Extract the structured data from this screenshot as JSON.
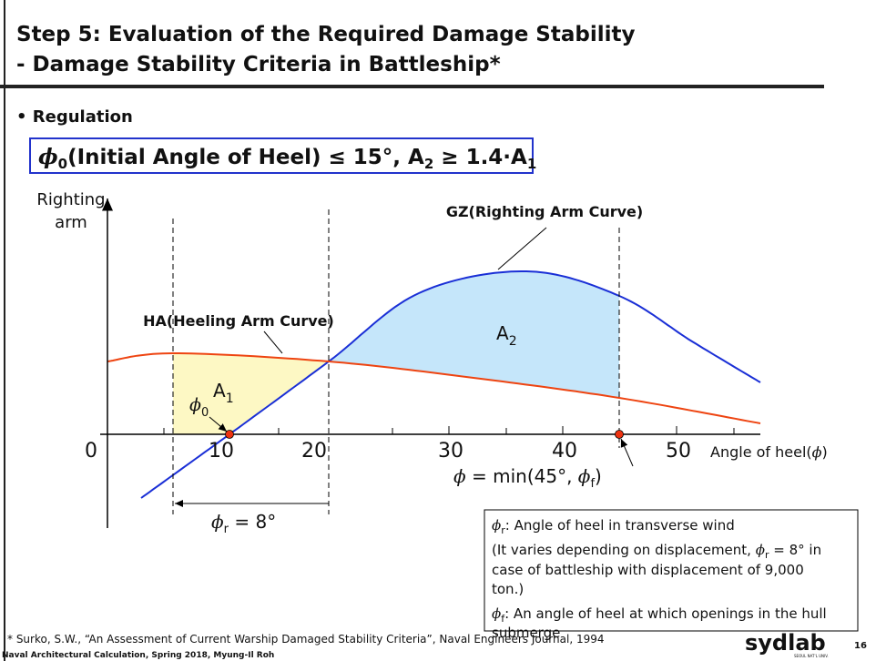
{
  "header": {
    "title_line1": "Step 5: Evaluation of the Required Damage Stability",
    "title_line2": "- Damage Stability Criteria in Battleship*"
  },
  "bullet": "Regulation",
  "regulation": {
    "phi": "ϕ",
    "phi_sub": "0",
    "text1": "(Initial Angle of Heel) ≤ 15°, A",
    "a2_sub": "2",
    "text2": " ≥ 1.4·A",
    "a1_sub": "1"
  },
  "diagram": {
    "y_axis_label_1": "Righting",
    "y_axis_label_2": "arm",
    "gz_label": "GZ(Righting Arm Curve)",
    "ha_label": "HA(Heeling Arm Curve)",
    "area_a2": "A",
    "area_a2_sub": "2",
    "area_a1": "A",
    "area_a1_sub": "1",
    "phi0": "ϕ",
    "phi0_sub": "0",
    "x_ticks": [
      "0",
      "10",
      "20",
      "30",
      "40",
      "50"
    ],
    "x_axis_label": "Angle of heel(",
    "x_axis_phi": "ϕ",
    "x_axis_close": ")",
    "phi_eq": "ϕ",
    "phi_eq_text": " = min(45°, ",
    "phi_eq_f": "ϕ",
    "phi_eq_f_sub": "f",
    "phi_eq_close": ")",
    "phir": "ϕ",
    "phir_sub": "r",
    "phir_text": " = 8°"
  },
  "note": {
    "l1_phi": "ϕ",
    "l1_sub": "r",
    "l1_text": ": Angle of heel in transverse wind",
    "l2": "(It varies depending on displacement, ",
    "l2_phi": "ϕ",
    "l2_sub": "r",
    "l2_end": " = 8° in",
    "l3": "case of battleship with displacement of 9,000",
    "l4": "ton.)",
    "l5_phi": "ϕ",
    "l5_sub": "f",
    "l5_text": ": An angle of heel at which openings in the hull",
    "l6": "submerge"
  },
  "footer": {
    "citation": "* Surko, S.W., “An Assessment of Current Warship Damaged Stability Criteria”, Naval Engineers Journal, 1994",
    "course": "Naval Architectural Calculation, Spring 2018, Myung-Il Roh",
    "logo": "sydlab",
    "logo_sub": "SEOUL NAT'L UNIV.",
    "page": "16"
  }
}
